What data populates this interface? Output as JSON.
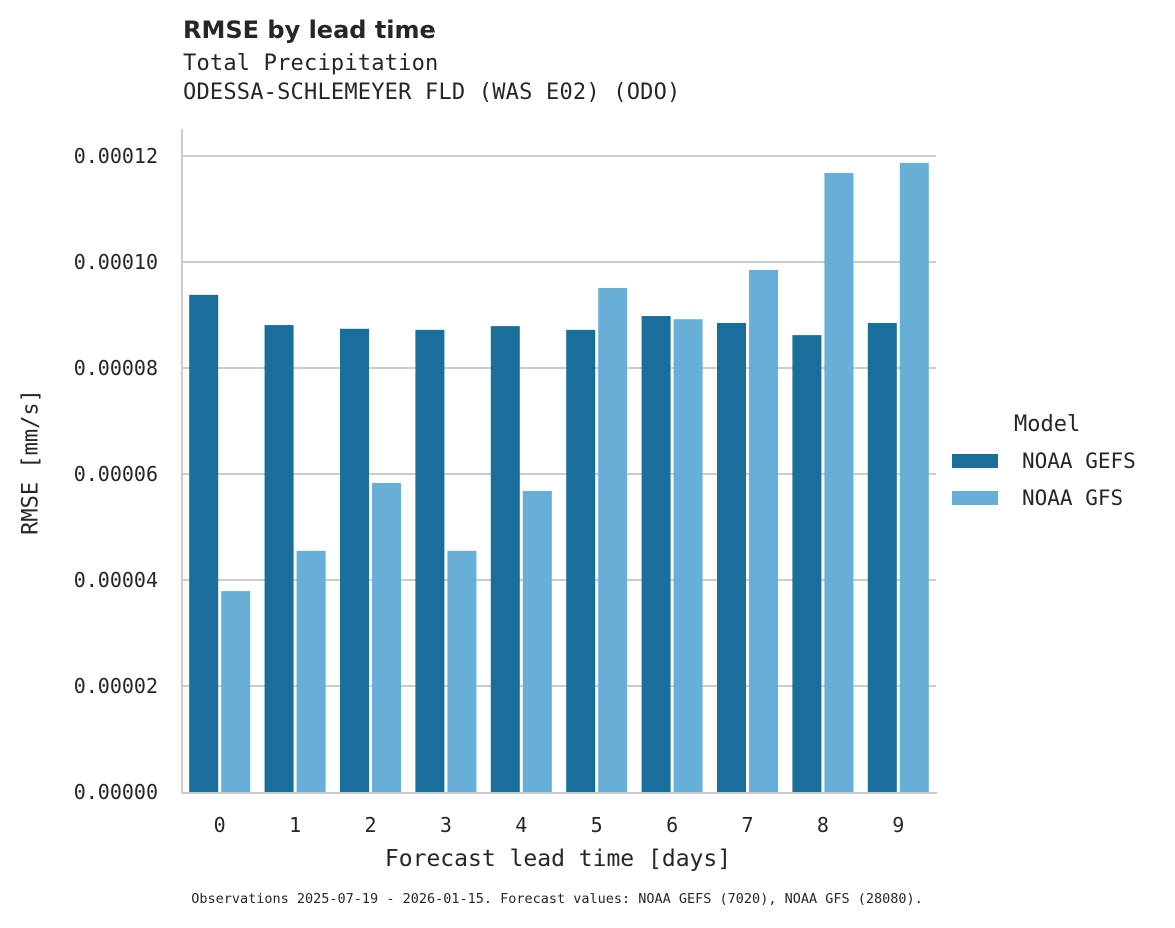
{
  "header": {
    "title": "RMSE by lead time",
    "subtitle_line1": "Total Precipitation",
    "subtitle_line2": "ODESSA-SCHLEMEYER FLD (WAS E02) (ODO)"
  },
  "axes": {
    "xlabel": "Forecast lead time [days]",
    "ylabel": "RMSE [mm/s]",
    "yticks": [
      "0.00000",
      "0.00002",
      "0.00004",
      "0.00006",
      "0.00008",
      "0.00010",
      "0.00012"
    ],
    "xticks": [
      "0",
      "1",
      "2",
      "3",
      "4",
      "5",
      "6",
      "7",
      "8",
      "9"
    ]
  },
  "legend": {
    "title": "Model",
    "items": [
      {
        "label": "NOAA GEFS",
        "color": "#1a6e9c"
      },
      {
        "label": "NOAA GFS",
        "color": "#68afd7"
      }
    ]
  },
  "footnote": "Observations 2025-07-19 - 2026-01-15. Forecast values: NOAA GEFS (7020), NOAA GFS (28080).",
  "colors": {
    "gefs": "#1a6e9c",
    "gfs": "#68afd7",
    "grid": "#cccccc",
    "spine": "#cccccc",
    "text": "#262626"
  },
  "chart_data": {
    "type": "bar",
    "title": "RMSE by lead time",
    "subtitle": "Total Precipitation — ODESSA-SCHLEMEYER FLD (WAS E02) (ODO)",
    "xlabel": "Forecast lead time [days]",
    "ylabel": "RMSE [mm/s]",
    "categories": [
      "0",
      "1",
      "2",
      "3",
      "4",
      "5",
      "6",
      "7",
      "8",
      "9"
    ],
    "series": [
      {
        "name": "NOAA GEFS",
        "color": "#1a6e9c",
        "values": [
          9.38e-05,
          8.81e-05,
          8.74e-05,
          8.72e-05,
          8.79e-05,
          8.72e-05,
          8.98e-05,
          8.85e-05,
          8.62e-05,
          8.85e-05
        ]
      },
      {
        "name": "NOAA GFS",
        "color": "#68afd7",
        "values": [
          3.79e-05,
          4.55e-05,
          5.83e-05,
          4.55e-05,
          5.68e-05,
          9.51e-05,
          8.92e-05,
          9.85e-05,
          0.0001168,
          0.0001187
        ]
      }
    ],
    "ylim": [
      0,
      0.000125
    ],
    "yticks": [
      0,
      2e-05,
      4e-05,
      6e-05,
      8e-05,
      0.0001,
      0.00012
    ],
    "grid": "horizontal",
    "legend_position": "right",
    "legend_title": "Model"
  }
}
